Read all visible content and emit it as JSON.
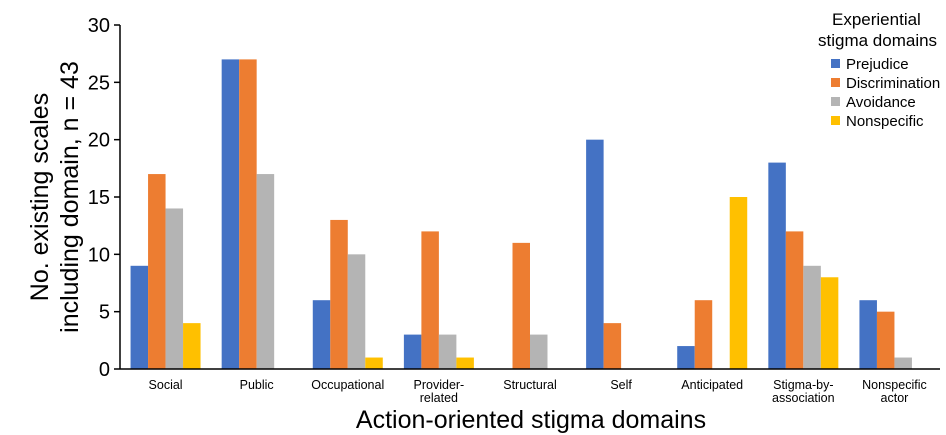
{
  "chart_data": {
    "type": "bar",
    "xlabel": "Action-oriented stigma domains",
    "ylabel_lines": [
      "No. existing scales",
      "including domain, n = 43"
    ],
    "ylim": [
      0,
      30
    ],
    "yticks": [
      "0",
      "5",
      "10",
      "15",
      "20",
      "25",
      "30"
    ],
    "grid": false,
    "legend_position": "top-right",
    "legend_title_lines": [
      "Experiential",
      "stigma domains"
    ],
    "categories": [
      [
        "Social"
      ],
      [
        "Public"
      ],
      [
        "Occupational"
      ],
      [
        "Provider-",
        "related"
      ],
      [
        "Structural"
      ],
      [
        "Self"
      ],
      [
        "Anticipated"
      ],
      [
        "Stigma-by-",
        "association"
      ],
      [
        "Nonspecific",
        "actor"
      ]
    ],
    "series": [
      {
        "name": "Prejudice",
        "color": "#4472c4",
        "values": [
          9,
          27,
          6,
          3,
          0,
          20,
          2,
          18,
          6
        ]
      },
      {
        "name": "Discrimination",
        "color": "#ed7d31",
        "values": [
          17,
          27,
          13,
          12,
          11,
          4,
          6,
          12,
          5
        ]
      },
      {
        "name": "Avoidance",
        "color": "#b4b4b4",
        "values": [
          14,
          17,
          10,
          3,
          3,
          0,
          0,
          9,
          1
        ]
      },
      {
        "name": "Nonspecific",
        "color": "#ffc000",
        "values": [
          4,
          0,
          1,
          1,
          0,
          0,
          15,
          8,
          0
        ]
      }
    ]
  }
}
